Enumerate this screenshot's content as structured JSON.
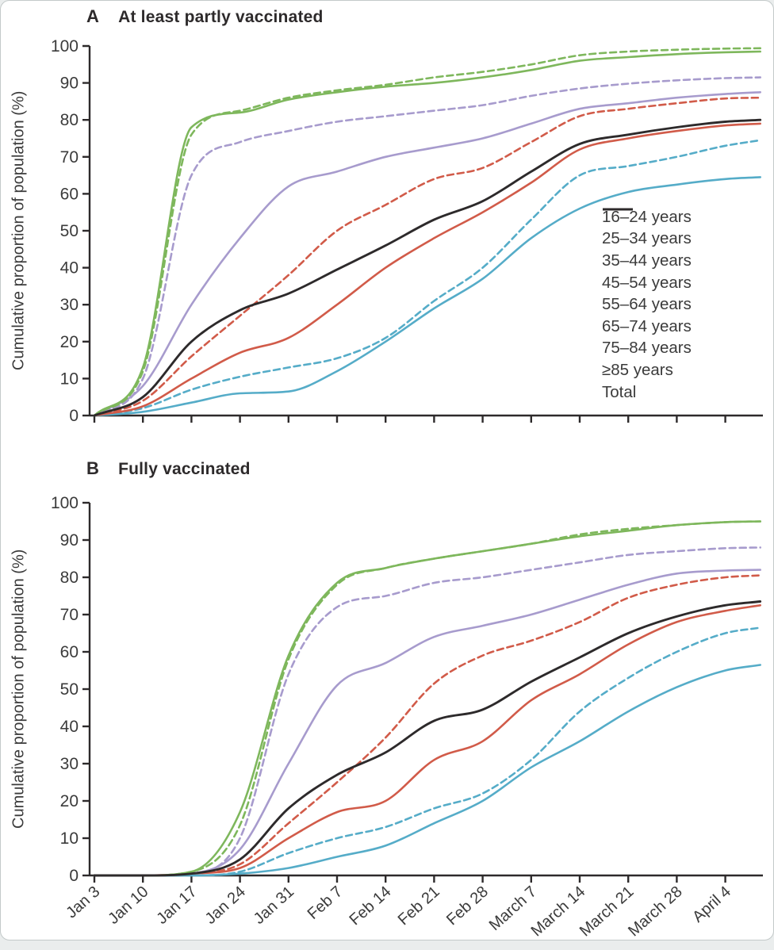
{
  "page": {
    "background": "#eaeded",
    "card_background": "#ffffff",
    "card_border": "#c3c9c9"
  },
  "colors": {
    "blue": "#55ACC8",
    "red": "#D15B49",
    "purple": "#A79BCD",
    "green": "#7EB75C",
    "black": "#2D2A2B",
    "text": "#3B3B3B",
    "axis": "#2D2A2B"
  },
  "figure": {
    "ylabel": "Cumulative proportion of population (%)",
    "panels": [
      {
        "letter": "A",
        "title": "At least partly vaccinated"
      },
      {
        "letter": "B",
        "title": "Fully vaccinated"
      }
    ]
  },
  "chart_data": [
    {
      "type": "line",
      "title": "At least partly vaccinated",
      "ylabel": "Cumulative proportion of population (%)",
      "ylim": [
        0,
        100
      ],
      "y_ticks": [
        0,
        10,
        20,
        30,
        40,
        50,
        60,
        70,
        80,
        90,
        100
      ],
      "grid": false,
      "legend_position": "inside-right",
      "x_tick_labels": [
        "Jan 3",
        "Jan 10",
        "Jan 17",
        "Jan 24",
        "Jan 31",
        "Feb 7",
        "Feb 14",
        "Feb 21",
        "Feb 28",
        "March 7",
        "March 14",
        "March 21",
        "March 28",
        "April 4"
      ],
      "x_weeks": [
        0,
        1,
        2,
        3,
        4,
        5,
        6,
        7,
        8,
        9,
        10,
        11,
        12,
        13,
        13.72
      ],
      "series": [
        {
          "name": "16–24 years",
          "color": "blue",
          "dash": false,
          "values": [
            0,
            1,
            3.5,
            6,
            6.5,
            12,
            20,
            29,
            37,
            48,
            56,
            60.5,
            62.5,
            64,
            64.5
          ]
        },
        {
          "name": "25–34 years",
          "color": "blue",
          "dash": true,
          "values": [
            0,
            2,
            7,
            10.5,
            13,
            15.5,
            21,
            31,
            40,
            53,
            65,
            67.5,
            70,
            73,
            74.5
          ]
        },
        {
          "name": "35–44 years",
          "color": "red",
          "dash": false,
          "values": [
            0,
            2.5,
            10,
            17,
            21,
            30,
            40,
            48,
            55,
            63,
            72,
            75,
            77,
            78.5,
            79
          ]
        },
        {
          "name": "45–54 years",
          "color": "red",
          "dash": true,
          "values": [
            0,
            4,
            16,
            27,
            38,
            50,
            57,
            64,
            67,
            74,
            81,
            83,
            84.5,
            85.8,
            86
          ]
        },
        {
          "name": "55–64 years",
          "color": "purple",
          "dash": false,
          "values": [
            0,
            8,
            30,
            48,
            62,
            66,
            70,
            72.5,
            75,
            79,
            83,
            84.5,
            86,
            87,
            87.5
          ]
        },
        {
          "name": "65–74 years",
          "color": "purple",
          "dash": true,
          "values": [
            0,
            10,
            65,
            74,
            77,
            79.5,
            81,
            82.5,
            84,
            86.5,
            88.5,
            89.8,
            90.7,
            91.3,
            91.5
          ]
        },
        {
          "name": "75–84 years",
          "color": "green",
          "dash": false,
          "values": [
            0,
            13,
            78,
            82,
            85.5,
            87.5,
            89,
            90,
            91.5,
            93.5,
            96,
            97,
            97.8,
            98.3,
            98.5
          ]
        },
        {
          "name": "≥85 years",
          "color": "green",
          "dash": true,
          "values": [
            0,
            12,
            76,
            82.5,
            86,
            88,
            89.5,
            91.5,
            93,
            95,
            97.5,
            98.5,
            99,
            99.3,
            99.4
          ]
        },
        {
          "name": "Total",
          "color": "black",
          "dash": false,
          "values": [
            0,
            5,
            20,
            28.5,
            33,
            39.5,
            46,
            53,
            58,
            66,
            73.5,
            76,
            78,
            79.5,
            80
          ]
        }
      ]
    },
    {
      "type": "line",
      "title": "Fully vaccinated",
      "ylabel": "Cumulative proportion of population (%)",
      "ylim": [
        0,
        100
      ],
      "y_ticks": [
        0,
        10,
        20,
        30,
        40,
        50,
        60,
        70,
        80,
        90,
        100
      ],
      "grid": false,
      "legend_position": "none",
      "x_tick_labels": [
        "Jan 3",
        "Jan 10",
        "Jan 17",
        "Jan 24",
        "Jan 31",
        "Feb 7",
        "Feb 14",
        "Feb 21",
        "Feb 28",
        "March 7",
        "March 14",
        "March 21",
        "March 28",
        "April 4"
      ],
      "x_weeks": [
        0,
        1,
        2,
        3,
        4,
        5,
        6,
        7,
        8,
        9,
        10,
        11,
        12,
        13,
        13.72
      ],
      "series": [
        {
          "name": "16–24 years",
          "color": "blue",
          "dash": false,
          "values": [
            0,
            0,
            0,
            0.5,
            2,
            5,
            8,
            14,
            20,
            29,
            36,
            44,
            50.5,
            55,
            56.5
          ]
        },
        {
          "name": "25–34 years",
          "color": "blue",
          "dash": true,
          "values": [
            0,
            0,
            0,
            1,
            6,
            10,
            13,
            18,
            22,
            31,
            44,
            53,
            60,
            65,
            66.5
          ]
        },
        {
          "name": "35–44 years",
          "color": "red",
          "dash": false,
          "values": [
            0,
            0,
            0.5,
            2,
            10,
            17,
            20,
            31,
            36,
            47,
            54,
            62,
            68,
            71,
            72.5
          ]
        },
        {
          "name": "45–54 years",
          "color": "red",
          "dash": true,
          "values": [
            0,
            0,
            0.5,
            3,
            14,
            25,
            37,
            51.5,
            59,
            63,
            68,
            74.5,
            78,
            80,
            80.5
          ]
        },
        {
          "name": "55–64 years",
          "color": "purple",
          "dash": false,
          "values": [
            0,
            0,
            0.5,
            7,
            30,
            51,
            57,
            64,
            67,
            70,
            74,
            78,
            81,
            81.8,
            82
          ]
        },
        {
          "name": "65–74 years",
          "color": "purple",
          "dash": true,
          "values": [
            0,
            0,
            0.5,
            10,
            54,
            72,
            75,
            78.5,
            80,
            82,
            84,
            86,
            87,
            87.8,
            88
          ]
        },
        {
          "name": "75–84 years",
          "color": "green",
          "dash": false,
          "values": [
            0,
            0,
            1,
            17,
            59,
            78.5,
            82.5,
            85,
            87,
            89,
            91,
            92.5,
            94,
            94.8,
            95
          ]
        },
        {
          "name": "≥85 years",
          "color": "green",
          "dash": true,
          "values": [
            0,
            0,
            1,
            13.5,
            58,
            78,
            82.5,
            85,
            87,
            89,
            91.5,
            93,
            94,
            94.8,
            95
          ]
        },
        {
          "name": "Total",
          "color": "black",
          "dash": false,
          "values": [
            0,
            0,
            0.5,
            4.3,
            18,
            27,
            33,
            41.5,
            44.5,
            52,
            58.5,
            65,
            69.5,
            72.5,
            73.5
          ]
        }
      ]
    }
  ]
}
